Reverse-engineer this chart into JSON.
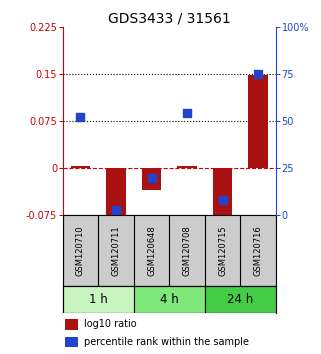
{
  "title": "GDS3433 / 31561",
  "samples": [
    "GSM120710",
    "GSM120711",
    "GSM120648",
    "GSM120708",
    "GSM120715",
    "GSM120716"
  ],
  "log10_ratio": [
    0.003,
    -0.095,
    -0.035,
    0.003,
    -0.082,
    0.148
  ],
  "percentile_rank_pct": [
    52,
    3,
    20,
    54,
    8,
    75
  ],
  "left_ylim": [
    -0.075,
    0.225
  ],
  "right_ylim": [
    0,
    100
  ],
  "left_yticks": [
    -0.075,
    0,
    0.075,
    0.15,
    0.225
  ],
  "right_yticks": [
    0,
    25,
    50,
    75,
    100
  ],
  "left_ytick_labels": [
    "-0.075",
    "0",
    "0.075",
    "0.15",
    "0.225"
  ],
  "right_ytick_labels": [
    "0",
    "25",
    "50",
    "75",
    "100%"
  ],
  "hlines": [
    0.075,
    0.15
  ],
  "dashed_hline": 0.0,
  "time_groups": [
    {
      "label": "1 h",
      "start": 0,
      "end": 2,
      "color": "#c8f5c0"
    },
    {
      "label": "4 h",
      "start": 2,
      "end": 4,
      "color": "#7ee87a"
    },
    {
      "label": "24 h",
      "start": 4,
      "end": 6,
      "color": "#44cc44"
    }
  ],
  "bar_color": "#aa1111",
  "dot_color": "#2244cc",
  "bar_width": 0.55,
  "dot_size": 28,
  "sample_box_color": "#cccccc",
  "sample_text_color": "#000000",
  "axis_left_color": "#cc0000",
  "axis_right_color": "#2244cc",
  "title_fontsize": 10,
  "tick_fontsize": 7,
  "sample_fontsize": 6,
  "time_fontsize": 8.5,
  "legend_fontsize": 7
}
